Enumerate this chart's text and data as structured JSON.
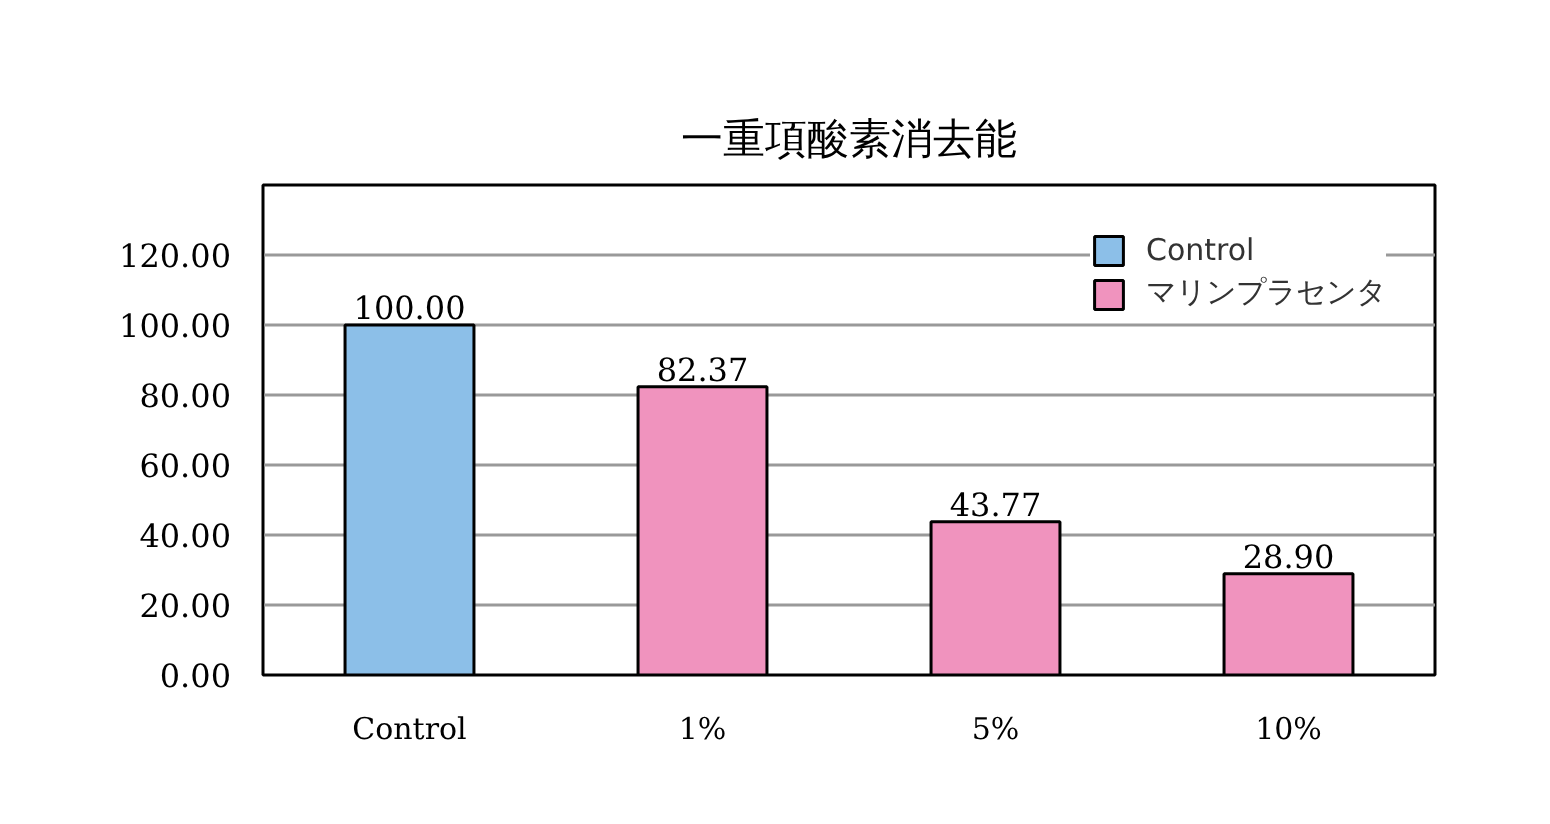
{
  "chart_data": {
    "type": "bar",
    "title": "一重項酸素消去能",
    "categories": [
      "Control",
      "1%",
      "5%",
      "10%"
    ],
    "series": [
      {
        "name": "Control",
        "color": "#8cbfe8",
        "values": [
          100.0,
          null,
          null,
          null
        ],
        "value_labels": [
          "100.00",
          null,
          null,
          null
        ]
      },
      {
        "name": "マリンプラセンタ",
        "color": "#f093be",
        "values": [
          null,
          82.37,
          43.77,
          28.9
        ],
        "value_labels": [
          null,
          "82.37",
          "43.77",
          "28.90"
        ]
      }
    ],
    "ylim": [
      0,
      140
    ],
    "yticks": [
      {
        "value": 0,
        "label": "0.00"
      },
      {
        "value": 20,
        "label": "20.00"
      },
      {
        "value": 40,
        "label": "40.00"
      },
      {
        "value": 60,
        "label": "60.00"
      },
      {
        "value": 80,
        "label": "80.00"
      },
      {
        "value": 100,
        "label": "100.00"
      },
      {
        "value": 120,
        "label": "120.00"
      }
    ],
    "grid": "y",
    "legend": "top right"
  }
}
